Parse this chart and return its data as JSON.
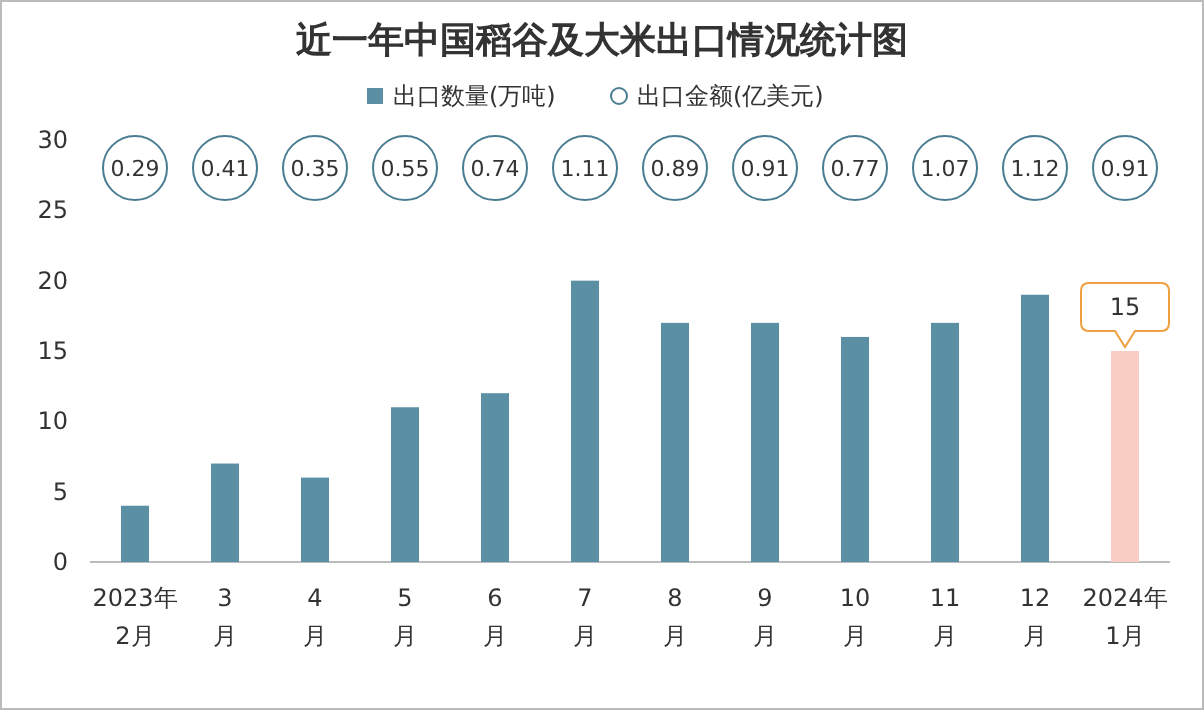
{
  "chart_data": {
    "type": "bar",
    "title": "近一年中国稻谷及大米出口情况统计图",
    "categories": [
      "2023年2月",
      "3月",
      "4月",
      "5月",
      "6月",
      "7月",
      "8月",
      "9月",
      "10月",
      "11月",
      "12月",
      "2024年1月"
    ],
    "series": [
      {
        "name": "出口数量(万吨)",
        "color": "#5b8fa3",
        "colors": [
          "#5b8fa3",
          "#5b8fa3",
          "#5b8fa3",
          "#5b8fa3",
          "#5b8fa3",
          "#5b8fa3",
          "#5b8fa3",
          "#5b8fa3",
          "#5b8fa3",
          "#5b8fa3",
          "#5b8fa3",
          "#f8cdc4"
        ],
        "values": [
          4,
          7,
          6,
          11,
          12,
          20,
          17,
          17,
          16,
          17,
          19,
          15
        ],
        "value_labels": [
          null,
          null,
          null,
          null,
          null,
          null,
          null,
          null,
          null,
          null,
          null,
          "15"
        ]
      }
    ],
    "annotations": [
      "出口金额(亿美元)",
      {
        "text": "0.29",
        "x": "2023年2月"
      },
      {
        "text": "0.41",
        "x": "3月"
      },
      {
        "text": "0.35",
        "x": "4月"
      },
      {
        "text": "0.55",
        "x": "5月"
      },
      {
        "text": "0.74",
        "x": "6月"
      },
      {
        "text": "1.11",
        "x": "7月"
      },
      {
        "text": "0.89",
        "x": "8月"
      },
      {
        "text": "0.91",
        "x": "9月"
      },
      {
        "text": "0.77",
        "x": "10月"
      },
      {
        "text": "1.07",
        "x": "11月"
      },
      {
        "text": "1.12",
        "x": "12月"
      },
      {
        "text": "0.91",
        "x": "2024年1月"
      }
    ],
    "ylim": [
      0,
      30
    ],
    "yticks": [
      0,
      5,
      10,
      15,
      20,
      25,
      30
    ],
    "grid": false,
    "legend": "top"
  }
}
